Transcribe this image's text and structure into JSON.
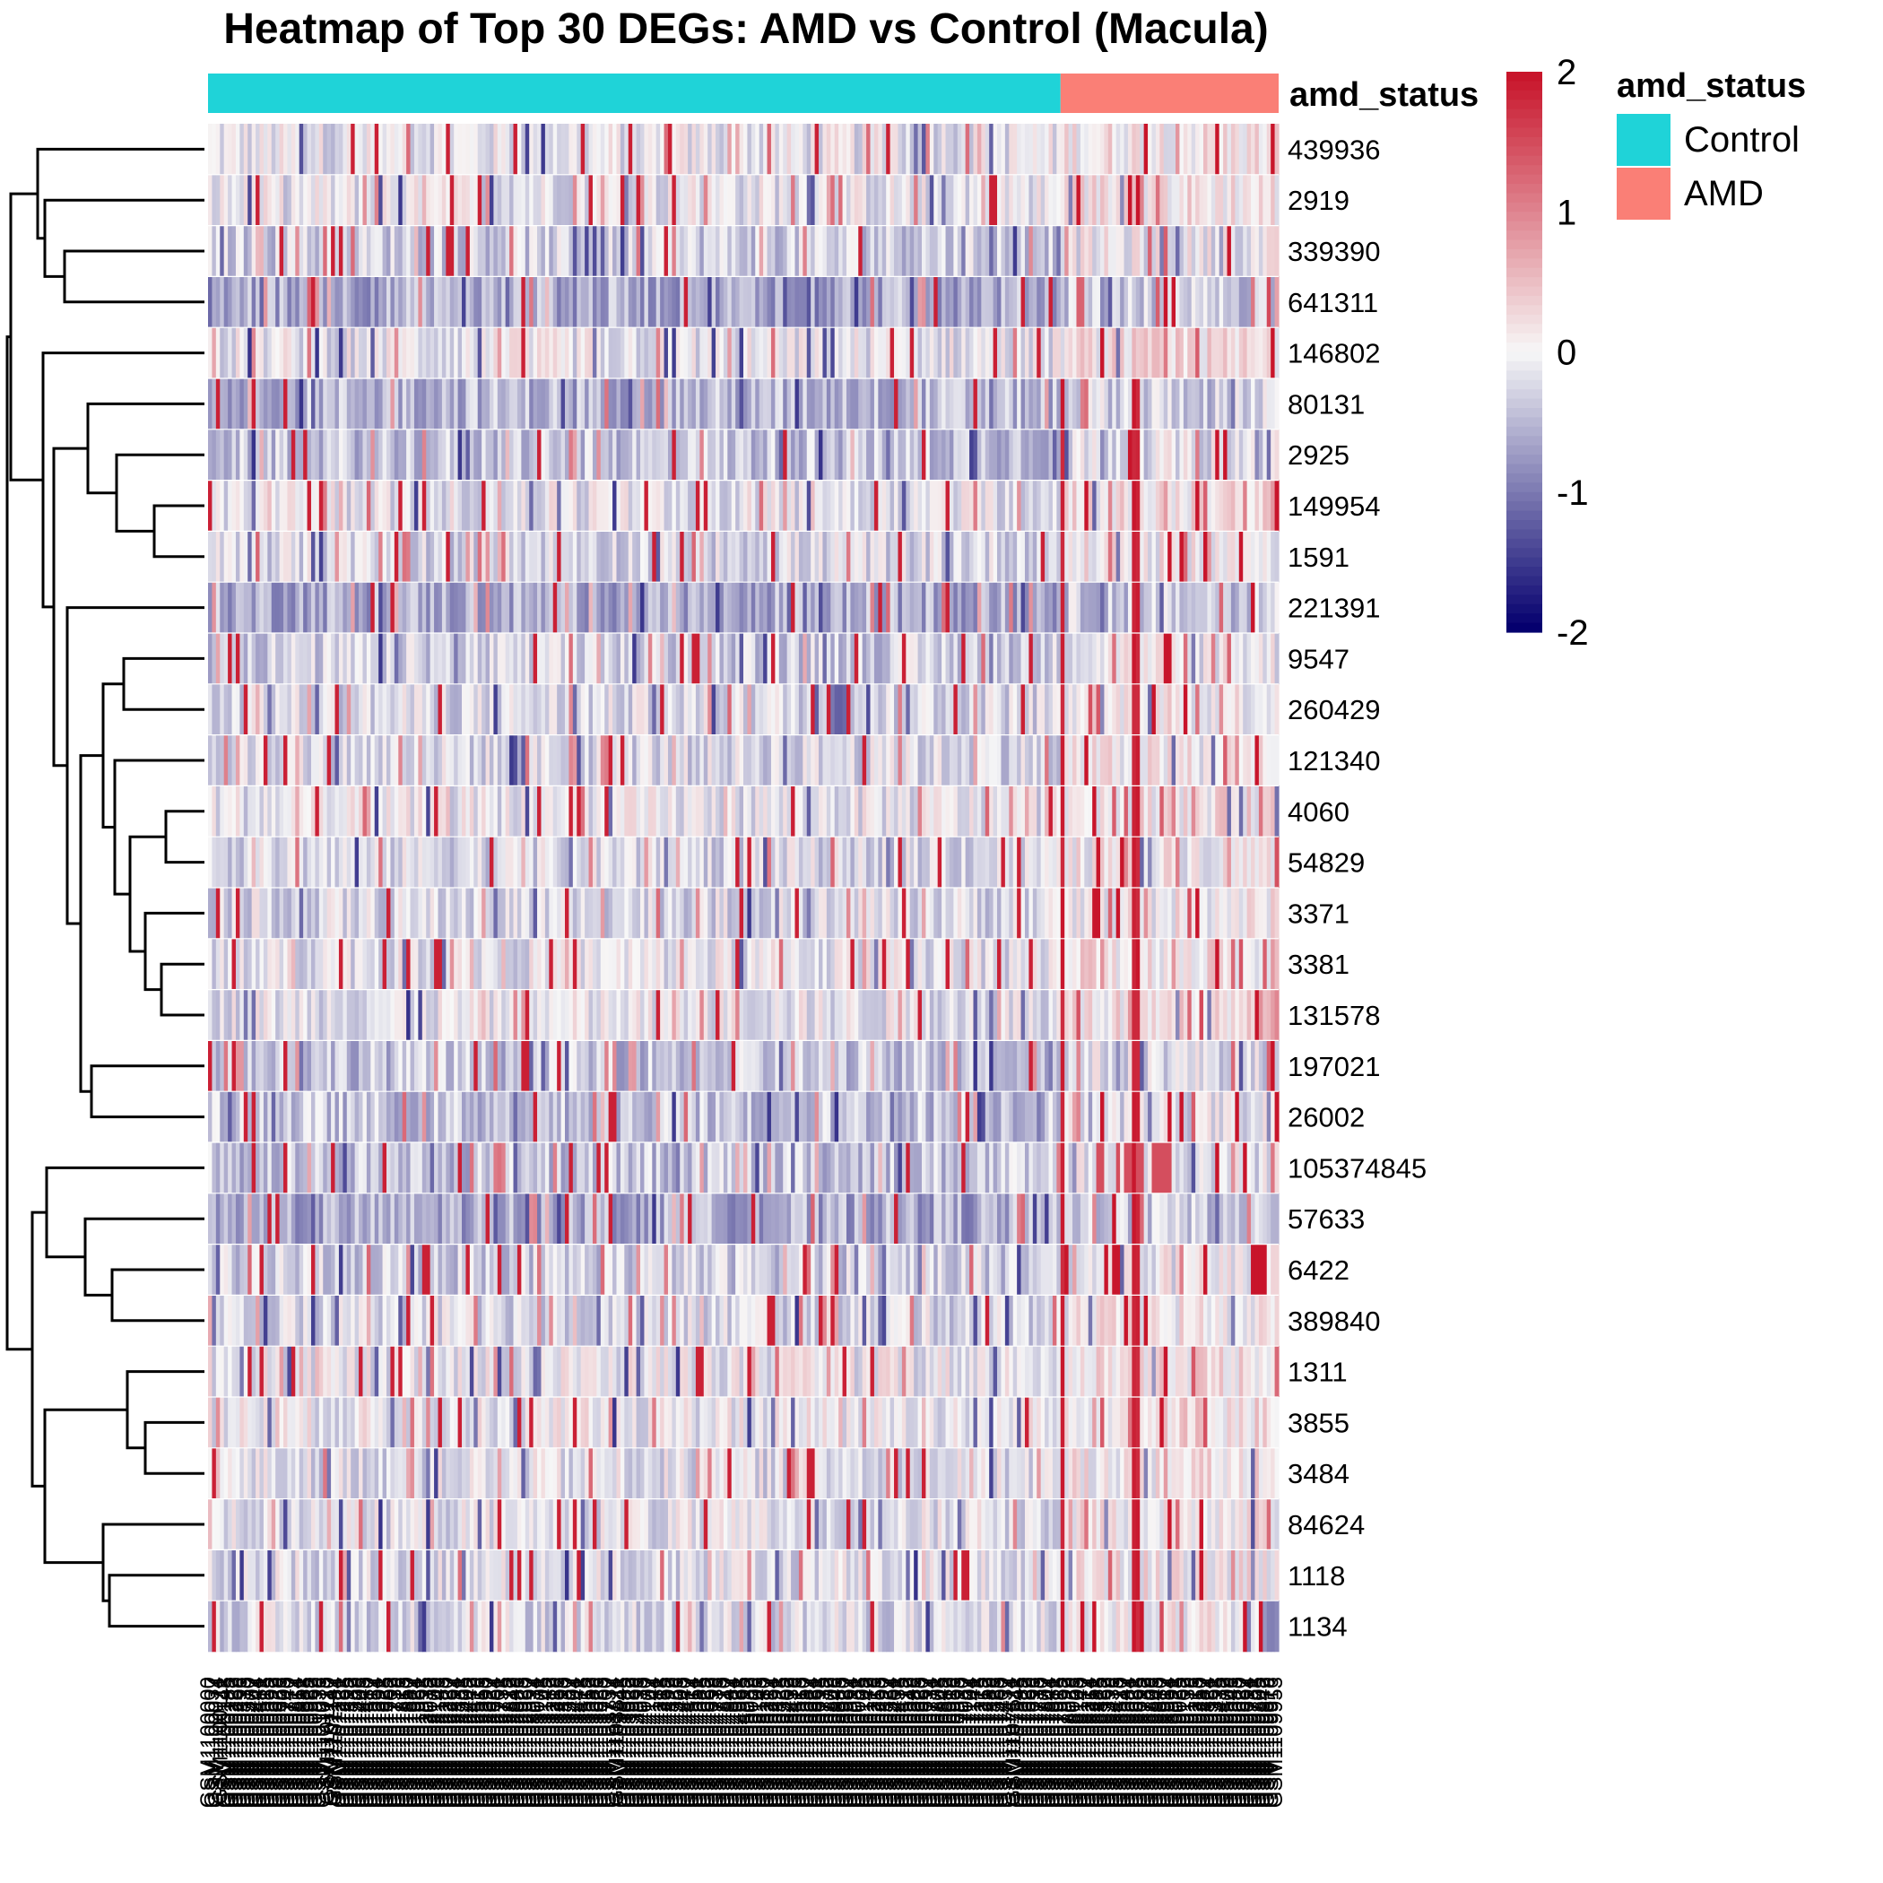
{
  "chart_data": {
    "type": "heatmap",
    "title": "Heatmap of Top 30 DEGs: AMD vs Control (Macula)",
    "rows": [
      "439936",
      "2919",
      "339390",
      "641311",
      "146802",
      "80131",
      "2925",
      "149954",
      "1591",
      "221391",
      "9547",
      "260429",
      "121340",
      "4060",
      "54829",
      "3371",
      "3381",
      "131578",
      "197021",
      "26002",
      "105374845",
      "57633",
      "6422",
      "389840",
      "1311",
      "3855",
      "3484",
      "84624",
      "1118",
      "1134"
    ],
    "column_groups": [
      {
        "name": "Control",
        "count": 215
      },
      {
        "name": "AMD",
        "count": 55
      }
    ],
    "annotation": {
      "title": "amd_status",
      "legend_title": "amd_status",
      "legend_items": [
        {
          "label": "Control",
          "color": "#1fd3d8"
        },
        {
          "label": "AMD",
          "color": "#fa7f76"
        }
      ]
    },
    "color_scale": {
      "min": -2,
      "max": 2,
      "ticks": [
        "2",
        "1",
        "0",
        "-1",
        "-2"
      ],
      "low_color": "#05006e",
      "mid_color": "#f7f7f7",
      "high_color": "#c8152b"
    },
    "row_mean_bias": [
      -0.1,
      -0.1,
      -0.3,
      -0.6,
      -0.1,
      -0.5,
      -0.4,
      -0.1,
      -0.2,
      -0.6,
      -0.3,
      -0.2,
      -0.2,
      -0.1,
      -0.2,
      -0.2,
      -0.1,
      -0.1,
      -0.4,
      -0.4,
      -0.4,
      -0.6,
      -0.3,
      -0.2,
      -0.05,
      -0.05,
      -0.15,
      -0.15,
      -0.15,
      -0.2
    ],
    "dendrogram_order": [
      0,
      1,
      2,
      3,
      4,
      5,
      6,
      7,
      8,
      9,
      10,
      11,
      12,
      13,
      14,
      15,
      16,
      17,
      18,
      19,
      20,
      21,
      22,
      23,
      24,
      25,
      26,
      27,
      28,
      29
    ],
    "column_labels": "sample identifiers (illegible, overlapping vertical text)",
    "grid": false,
    "legend_placement": "right"
  }
}
